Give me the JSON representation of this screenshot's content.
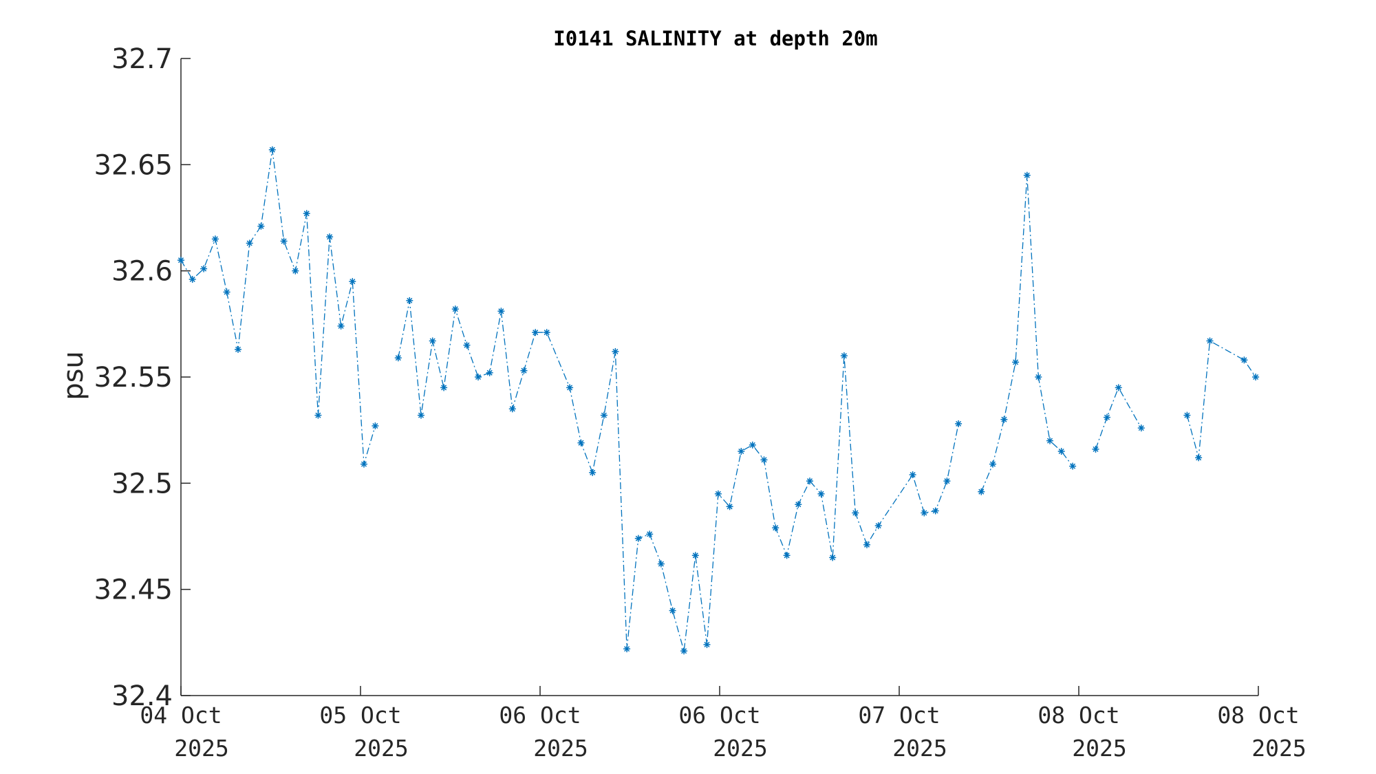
{
  "chart_data": {
    "type": "line",
    "title": "I0141 SALINITY at depth 20m",
    "xlabel": "",
    "ylabel": "psu",
    "ylim": [
      32.4,
      32.7
    ],
    "yticks": [
      "32.4",
      "32.45",
      "32.5",
      "32.55",
      "32.6",
      "32.65",
      "32.7"
    ],
    "xlim": [
      0,
      6
    ],
    "xticks": [
      {
        "day": "04 Oct",
        "year": "2025"
      },
      {
        "day": "05 Oct",
        "year": "2025"
      },
      {
        "day": "06 Oct",
        "year": "2025"
      },
      {
        "day": "06 Oct",
        "year": "2025"
      },
      {
        "day": "07 Oct",
        "year": "2025"
      },
      {
        "day": "08 Oct",
        "year": "2025"
      },
      {
        "day": "08 Oct",
        "year": "2025"
      }
    ],
    "grid": false,
    "marker": "asterisk",
    "line_style": "dash-dot",
    "color": "#0072BD",
    "series": [
      {
        "segments": [
          [
            [
              0.0,
              32.605
            ],
            [
              0.064,
              32.596
            ],
            [
              0.127,
              32.601
            ],
            [
              0.191,
              32.615
            ],
            [
              0.255,
              32.59
            ],
            [
              0.318,
              32.563
            ],
            [
              0.382,
              32.613
            ],
            [
              0.446,
              32.621
            ],
            [
              0.509,
              32.657
            ],
            [
              0.573,
              32.614
            ],
            [
              0.637,
              32.6
            ],
            [
              0.7,
              32.627
            ],
            [
              0.764,
              32.532
            ],
            [
              0.828,
              32.616
            ],
            [
              0.891,
              32.574
            ],
            [
              0.955,
              32.595
            ],
            [
              1.019,
              32.509
            ],
            [
              1.082,
              32.527
            ]
          ],
          [
            [
              1.21,
              32.559
            ],
            [
              1.273,
              32.586
            ],
            [
              1.337,
              32.532
            ],
            [
              1.401,
              32.567
            ],
            [
              1.464,
              32.545
            ],
            [
              1.528,
              32.582
            ],
            [
              1.592,
              32.565
            ],
            [
              1.655,
              32.55
            ],
            [
              1.719,
              32.552
            ],
            [
              1.783,
              32.581
            ],
            [
              1.846,
              32.535
            ],
            [
              1.91,
              32.553
            ],
            [
              1.974,
              32.571
            ],
            [
              2.037,
              32.571
            ],
            [
              2.165,
              32.545
            ],
            [
              2.228,
              32.519
            ],
            [
              2.292,
              32.505
            ],
            [
              2.356,
              32.532
            ],
            [
              2.419,
              32.562
            ],
            [
              2.483,
              32.422
            ],
            [
              2.547,
              32.474
            ],
            [
              2.61,
              32.476
            ],
            [
              2.674,
              32.462
            ],
            [
              2.738,
              32.44
            ],
            [
              2.801,
              32.421
            ],
            [
              2.865,
              32.466
            ],
            [
              2.929,
              32.424
            ],
            [
              2.992,
              32.495
            ],
            [
              3.056,
              32.489
            ],
            [
              3.12,
              32.515
            ],
            [
              3.183,
              32.518
            ],
            [
              3.247,
              32.511
            ],
            [
              3.311,
              32.479
            ],
            [
              3.374,
              32.466
            ],
            [
              3.438,
              32.49
            ],
            [
              3.502,
              32.501
            ],
            [
              3.565,
              32.495
            ],
            [
              3.629,
              32.465
            ],
            [
              3.693,
              32.56
            ],
            [
              3.756,
              32.486
            ],
            [
              3.82,
              32.471
            ],
            [
              3.884,
              32.48
            ],
            [
              4.075,
              32.504
            ],
            [
              4.139,
              32.486
            ],
            [
              4.202,
              32.487
            ],
            [
              4.266,
              32.501
            ],
            [
              4.33,
              32.528
            ]
          ],
          [
            [
              4.457,
              32.496
            ],
            [
              4.521,
              32.509
            ],
            [
              4.584,
              32.53
            ],
            [
              4.648,
              32.557
            ],
            [
              4.712,
              32.645
            ],
            [
              4.775,
              32.55
            ],
            [
              4.839,
              32.52
            ],
            [
              4.903,
              32.515
            ],
            [
              4.966,
              32.508
            ]
          ],
          [
            [
              5.094,
              32.516
            ],
            [
              5.157,
              32.531
            ],
            [
              5.221,
              32.545
            ],
            [
              5.348,
              32.526
            ]
          ],
          [
            [
              5.603,
              32.532
            ],
            [
              5.667,
              32.512
            ],
            [
              5.73,
              32.567
            ],
            [
              5.921,
              32.558
            ],
            [
              5.985,
              32.55
            ]
          ]
        ]
      }
    ]
  }
}
